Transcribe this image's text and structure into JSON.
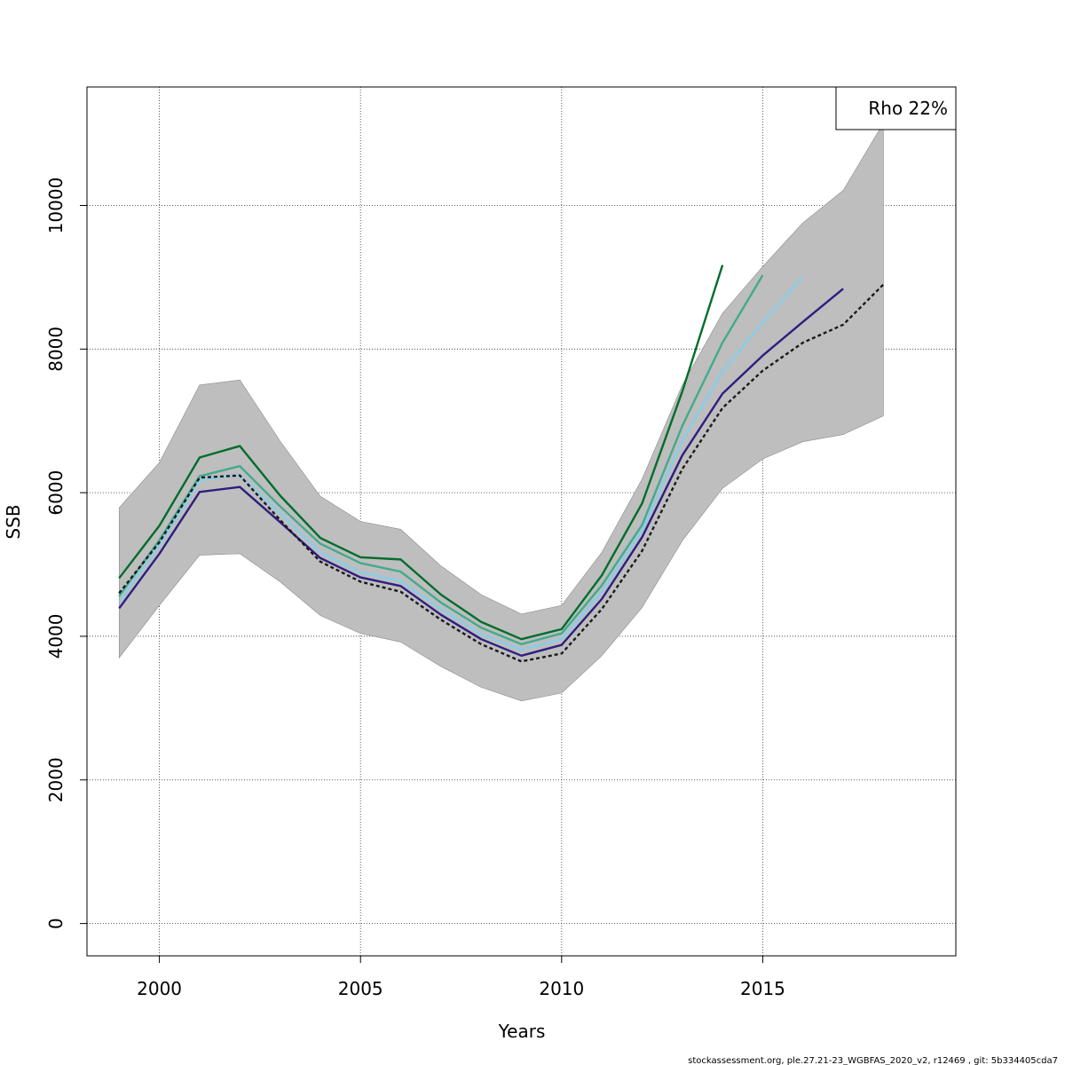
{
  "chart_data": {
    "type": "line",
    "title": "",
    "xlabel": "Years",
    "ylabel": "SSB",
    "xlim": [
      1998.2,
      2019.8
    ],
    "ylim": [
      -450,
      11650
    ],
    "xticks": [
      2000,
      2005,
      2010,
      2015
    ],
    "yticks": [
      0,
      2000,
      4000,
      6000,
      8000,
      10000
    ],
    "grid": true,
    "legend": {
      "placement": "top-right",
      "text": "Rho 22%"
    },
    "footer": "stockassessment.org, ple.27.21-23_WGBFAS_2020_v2, r12469 , git: 5b334405cda7",
    "confidence_band": {
      "color": "#bebebe",
      "x": [
        1999,
        2000,
        2001,
        2002,
        2003,
        2004,
        2005,
        2006,
        2007,
        2008,
        2009,
        2010,
        2011,
        2012,
        2013,
        2014,
        2015,
        2016,
        2017,
        2018
      ],
      "upper": [
        5790,
        6420,
        7500,
        7570,
        6720,
        5950,
        5600,
        5490,
        4980,
        4580,
        4310,
        4430,
        5170,
        6190,
        7500,
        8500,
        9150,
        9760,
        10210,
        11150
      ],
      "lower": [
        3700,
        4430,
        5130,
        5150,
        4760,
        4290,
        4040,
        3920,
        3580,
        3290,
        3100,
        3210,
        3730,
        4400,
        5330,
        6060,
        6470,
        6710,
        6810,
        7070
      ]
    },
    "series": [
      {
        "color": "#1a1a1a",
        "dashed": true,
        "x": [
          1999,
          2000,
          2001,
          2002,
          2003,
          2004,
          2005,
          2006,
          2007,
          2008,
          2009,
          2010,
          2011,
          2012,
          2013,
          2014,
          2015,
          2016,
          2017,
          2018
        ],
        "values": [
          4600,
          5310,
          6210,
          6240,
          5620,
          5040,
          4760,
          4620,
          4230,
          3890,
          3650,
          3760,
          4380,
          5190,
          6330,
          7180,
          7700,
          8090,
          8340,
          8900
        ]
      },
      {
        "color": "#006d2c",
        "dashed": false,
        "x": [
          1999,
          2000,
          2001,
          2002,
          2003,
          2004,
          2005,
          2006,
          2007,
          2008,
          2009,
          2010,
          2011,
          2012,
          2013,
          2014
        ],
        "values": [
          4810,
          5540,
          6490,
          6650,
          5960,
          5370,
          5100,
          5070,
          4580,
          4200,
          3960,
          4100,
          4850,
          5850,
          7410,
          9170
        ]
      },
      {
        "color": "#41ab8c",
        "dashed": false,
        "x": [
          1999,
          2000,
          2001,
          2002,
          2003,
          2004,
          2005,
          2006,
          2007,
          2008,
          2009,
          2010,
          2011,
          2012,
          2013,
          2014,
          2015
        ],
        "values": [
          4560,
          5340,
          6230,
          6370,
          5810,
          5290,
          5020,
          4900,
          4470,
          4120,
          3890,
          4040,
          4710,
          5550,
          6930,
          8090,
          9030
        ]
      },
      {
        "color": "#87ceeb",
        "dashed": false,
        "x": [
          1999,
          2000,
          2001,
          2002,
          2003,
          2004,
          2005,
          2006,
          2007,
          2008,
          2009,
          2010,
          2011,
          2012,
          2013,
          2014,
          2015,
          2016
        ],
        "values": [
          4480,
          5270,
          6170,
          6250,
          5710,
          5170,
          4890,
          4770,
          4380,
          4030,
          3810,
          3960,
          4620,
          5480,
          6720,
          7690,
          8370,
          9010
        ]
      },
      {
        "color": "#2e1e80",
        "dashed": false,
        "x": [
          1999,
          2000,
          2001,
          2002,
          2003,
          2004,
          2005,
          2006,
          2007,
          2008,
          2009,
          2010,
          2011,
          2012,
          2013,
          2014,
          2015,
          2016,
          2017
        ],
        "values": [
          4390,
          5150,
          6010,
          6080,
          5590,
          5090,
          4820,
          4700,
          4300,
          3960,
          3730,
          3880,
          4520,
          5380,
          6520,
          7380,
          7910,
          8380,
          8840
        ]
      }
    ]
  }
}
